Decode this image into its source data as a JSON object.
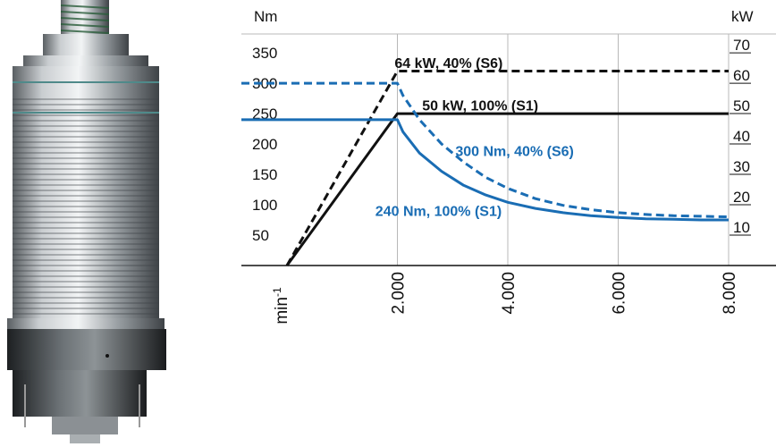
{
  "colors": {
    "blue": "#1a6db4",
    "black": "#111111",
    "grid": "#b8b8b8"
  },
  "image": {
    "subject": "spindle-motor-icon"
  },
  "chart_data": {
    "type": "line",
    "title": "",
    "xlabel": "min-1",
    "y_left_label": "Nm",
    "y_right_label": "kW",
    "xlim": [
      0,
      8000
    ],
    "ylim_left": [
      0,
      350
    ],
    "ylim_right": [
      0,
      70
    ],
    "x_ticks": [
      2000,
      4000,
      6000,
      8000
    ],
    "x_tick_labels": [
      "2.000",
      "4.000",
      "6.000",
      "8.000"
    ],
    "y_left_ticks": [
      350,
      300,
      250,
      200,
      150,
      100,
      50
    ],
    "y_left_tick_labels": [
      "350",
      "300",
      "250",
      "200",
      "150",
      "100",
      "50"
    ],
    "y_right_ticks": [
      70,
      60,
      50,
      40,
      30,
      20,
      10
    ],
    "y_right_tick_labels": [
      "70",
      "60",
      "50",
      "40",
      "30",
      "20",
      "10"
    ],
    "grid": true,
    "series": [
      {
        "name": "64 kW, 40% (S6)",
        "axis": "right",
        "color": "#111111",
        "dash": true,
        "x": [
          0,
          2000,
          8000
        ],
        "y": [
          0,
          64,
          64
        ],
        "label_x": 1950,
        "label_y": 65
      },
      {
        "name": "50 kW, 100% (S1)",
        "axis": "right",
        "color": "#111111",
        "dash": false,
        "x": [
          0,
          2000,
          8000
        ],
        "y": [
          0,
          50,
          50
        ],
        "label_x": 2450,
        "label_y": 51
      },
      {
        "name": "300 Nm, 40% (S6)",
        "axis": "left",
        "color": "#1a6db4",
        "dash": true,
        "x": [
          0,
          2000,
          2100,
          2400,
          2800,
          3200,
          3600,
          4000,
          4500,
          5000,
          5500,
          6000,
          6500,
          7000,
          7500,
          8000
        ],
        "y": [
          300,
          300,
          280,
          240,
          200,
          170,
          145,
          127,
          110,
          99,
          92,
          87,
          84,
          82,
          81,
          80
        ],
        "label_x": 3050,
        "label_y": 180
      },
      {
        "name": "240 Nm, 100% (S1)",
        "axis": "left",
        "color": "#1a6db4",
        "dash": false,
        "x": [
          0,
          2000,
          2100,
          2400,
          2800,
          3200,
          3600,
          4000,
          4500,
          5000,
          5500,
          6000,
          6500,
          7000,
          7500,
          8000
        ],
        "y": [
          240,
          240,
          220,
          185,
          155,
          132,
          116,
          104,
          94,
          87,
          82,
          79,
          77,
          76,
          75,
          75
        ],
        "label_x": 1600,
        "label_y": 82
      }
    ]
  }
}
